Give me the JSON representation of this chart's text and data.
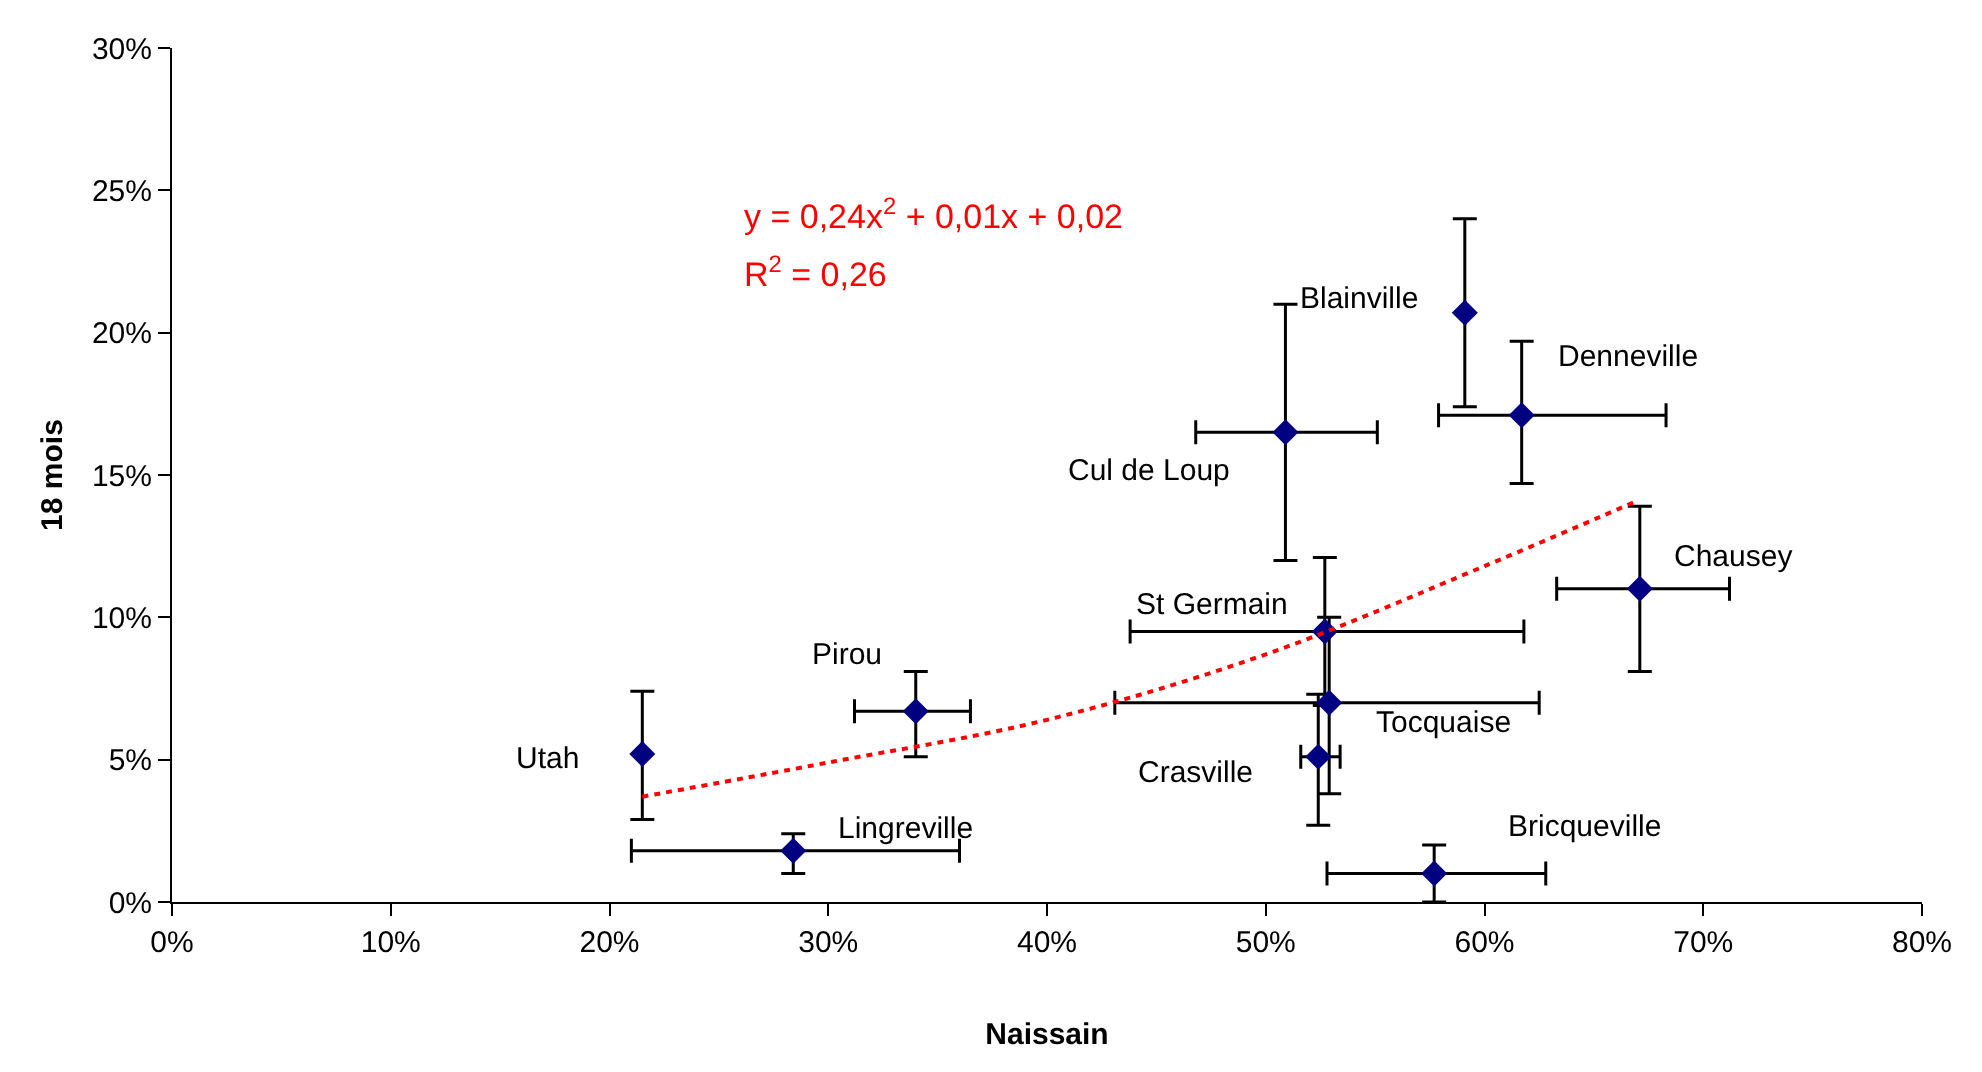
{
  "chart_data": {
    "type": "scatter",
    "xlabel": "Naissain",
    "ylabel": "18 mois",
    "xlim": [
      0,
      80
    ],
    "ylim": [
      0,
      30
    ],
    "xticks": [
      {
        "value": 0,
        "label": "0%"
      },
      {
        "value": 10,
        "label": "10%"
      },
      {
        "value": 20,
        "label": "20%"
      },
      {
        "value": 30,
        "label": "30%"
      },
      {
        "value": 40,
        "label": "40%"
      },
      {
        "value": 50,
        "label": "50%"
      },
      {
        "value": 60,
        "label": "60%"
      },
      {
        "value": 70,
        "label": "70%"
      },
      {
        "value": 80,
        "label": "80%"
      }
    ],
    "yticks": [
      {
        "value": 0,
        "label": "0%"
      },
      {
        "value": 5,
        "label": "5%"
      },
      {
        "value": 10,
        "label": "10%"
      },
      {
        "value": 15,
        "label": "15%"
      },
      {
        "value": 20,
        "label": "20%"
      },
      {
        "value": 25,
        "label": "25%"
      },
      {
        "value": 30,
        "label": "30%"
      }
    ],
    "grid": false,
    "series": [
      {
        "marker": "diamond",
        "color": "#000080",
        "x": [
          21.5,
          28.4,
          34.0,
          50.9,
          59.1,
          61.7,
          67.1,
          52.7,
          52.9,
          52.4,
          57.7
        ],
        "values": [
          5.2,
          1.8,
          6.7,
          16.5,
          20.7,
          17.1,
          11.0,
          9.5,
          7.0,
          5.1,
          1.0
        ],
        "errors": [
          [
            2.9,
            7.4
          ],
          [
            1.0,
            2.4
          ],
          [
            5.1,
            8.1
          ],
          [
            12.0,
            21.0
          ],
          [
            17.4,
            24.0
          ],
          [
            14.7,
            19.7
          ],
          [
            8.1,
            13.9
          ],
          [
            6.9,
            12.1
          ],
          [
            3.8,
            10.0
          ],
          [
            2.7,
            7.3
          ],
          [
            0.0,
            2.0
          ]
        ],
        "xerrors": [
          null,
          [
            21.0,
            36.0
          ],
          [
            31.2,
            36.5
          ],
          [
            46.8,
            55.1
          ],
          null,
          [
            57.9,
            68.3
          ],
          [
            63.3,
            71.2
          ],
          [
            43.8,
            61.8
          ],
          [
            43.1,
            62.5
          ],
          [
            51.6,
            53.4
          ],
          [
            52.8,
            62.8
          ]
        ]
      },
      {
        "type": "line",
        "line_style": "dotted",
        "marker": "none",
        "color": "#ff0000",
        "x": [
          21.5,
          30,
          40,
          50,
          60,
          67
        ],
        "values": [
          3.7,
          4.9,
          6.4,
          8.7,
          11.8,
          14.1
        ]
      }
    ],
    "annotations": [
      "y = 0,24x$^{2}$ + 0,01x + 0,02",
      "R$^{2}$ = 0,26",
      {
        "text": "Utah",
        "x": 21.5,
        "y": 5.2
      },
      {
        "text": "Lingreville",
        "x": 28.4,
        "y": 1.8
      },
      {
        "text": "Pirou",
        "x": 34.0,
        "y": 6.7
      },
      {
        "text": "Cul de Loup",
        "x": 50.9,
        "y": 16.5
      },
      {
        "text": "Blainville",
        "x": 59.1,
        "y": 20.7
      },
      {
        "text": "Denneville",
        "x": 61.7,
        "y": 17.1
      },
      {
        "text": "Chausey",
        "x": 67.1,
        "y": 11.0
      },
      {
        "text": "St Germain",
        "x": 52.7,
        "y": 9.5
      },
      {
        "text": "Tocquaise",
        "x": 52.9,
        "y": 7.0
      },
      {
        "text": "Crasville",
        "x": 52.4,
        "y": 5.1
      },
      {
        "text": "Bricqueville",
        "x": 57.7,
        "y": 1.0
      }
    ]
  }
}
